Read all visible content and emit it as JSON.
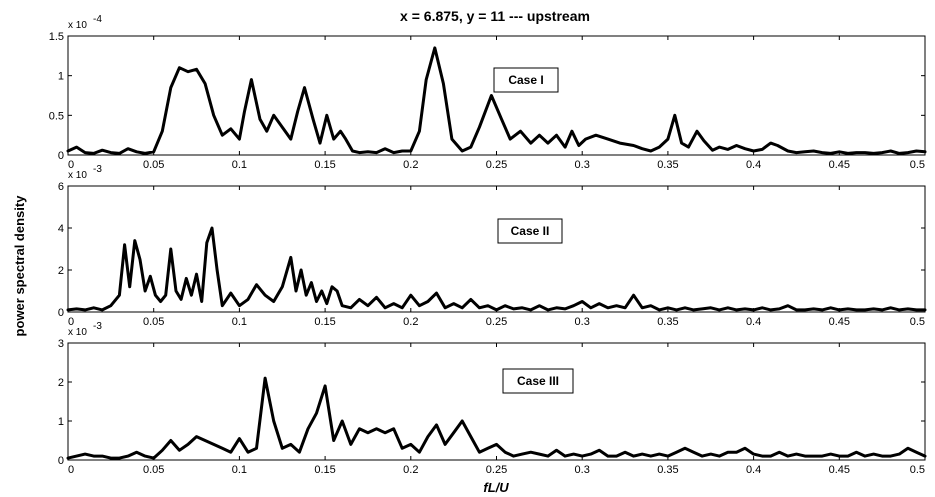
{
  "title": "x = 6.875, y = 11 --- upstream",
  "ylabel": "power spectral density",
  "xlabel": "fL/U",
  "chart_data": [
    {
      "type": "line",
      "annotation": "Case I",
      "exponent_label": "x 10",
      "exponent": "-4",
      "xlim": [
        0,
        0.5
      ],
      "ylim": [
        0,
        1.5
      ],
      "xticks": [
        "0",
        "0.05",
        "0.1",
        "0.15",
        "0.2",
        "0.25",
        "0.3",
        "0.35",
        "0.4",
        "0.45",
        "0.5"
      ],
      "yticks": [
        "0",
        "0.5",
        "1",
        "1.5"
      ],
      "x": [
        0,
        0.005,
        0.01,
        0.015,
        0.02,
        0.025,
        0.03,
        0.035,
        0.04,
        0.045,
        0.05,
        0.055,
        0.06,
        0.065,
        0.07,
        0.075,
        0.08,
        0.085,
        0.09,
        0.095,
        0.1,
        0.103,
        0.107,
        0.112,
        0.116,
        0.12,
        0.125,
        0.13,
        0.134,
        0.138,
        0.143,
        0.147,
        0.151,
        0.155,
        0.159,
        0.162,
        0.166,
        0.17,
        0.175,
        0.18,
        0.185,
        0.19,
        0.195,
        0.2,
        0.205,
        0.209,
        0.214,
        0.219,
        0.224,
        0.23,
        0.235,
        0.24,
        0.247,
        0.253,
        0.258,
        0.264,
        0.27,
        0.275,
        0.28,
        0.285,
        0.29,
        0.294,
        0.298,
        0.302,
        0.308,
        0.315,
        0.322,
        0.33,
        0.335,
        0.34,
        0.345,
        0.35,
        0.354,
        0.358,
        0.362,
        0.367,
        0.371,
        0.376,
        0.38,
        0.385,
        0.39,
        0.395,
        0.4,
        0.405,
        0.41,
        0.414,
        0.42,
        0.425,
        0.43,
        0.435,
        0.44,
        0.445,
        0.45,
        0.455,
        0.46,
        0.465,
        0.47,
        0.475,
        0.48,
        0.485,
        0.49,
        0.495,
        0.5
      ],
      "y": [
        0.05,
        0.1,
        0.03,
        0.02,
        0.06,
        0.03,
        0.02,
        0.08,
        0.04,
        0.02,
        0.04,
        0.3,
        0.85,
        1.1,
        1.05,
        1.08,
        0.9,
        0.5,
        0.25,
        0.33,
        0.2,
        0.55,
        0.95,
        0.45,
        0.3,
        0.5,
        0.35,
        0.2,
        0.55,
        0.85,
        0.45,
        0.15,
        0.5,
        0.2,
        0.3,
        0.2,
        0.05,
        0.03,
        0.04,
        0.03,
        0.08,
        0.03,
        0.05,
        0.05,
        0.3,
        0.95,
        1.35,
        0.9,
        0.2,
        0.05,
        0.1,
        0.35,
        0.75,
        0.45,
        0.2,
        0.3,
        0.15,
        0.25,
        0.15,
        0.25,
        0.1,
        0.3,
        0.12,
        0.2,
        0.25,
        0.2,
        0.15,
        0.12,
        0.08,
        0.05,
        0.1,
        0.2,
        0.5,
        0.15,
        0.1,
        0.3,
        0.18,
        0.06,
        0.1,
        0.07,
        0.12,
        0.08,
        0.05,
        0.07,
        0.15,
        0.12,
        0.05,
        0.03,
        0.04,
        0.05,
        0.03,
        0.02,
        0.04,
        0.02,
        0.03,
        0.03,
        0.02,
        0.03,
        0.05,
        0.02,
        0.03,
        0.05,
        0.04
      ]
    },
    {
      "type": "line",
      "annotation": "Case II",
      "exponent_label": "x 10",
      "exponent": "-3",
      "xlim": [
        0,
        0.5
      ],
      "ylim": [
        0,
        6
      ],
      "xticks": [
        "0",
        "0.05",
        "0.1",
        "0.15",
        "0.2",
        "0.25",
        "0.3",
        "0.35",
        "0.4",
        "0.45",
        "0.5"
      ],
      "yticks": [
        "0",
        "2",
        "4",
        "6"
      ],
      "x": [
        0,
        0.005,
        0.01,
        0.015,
        0.02,
        0.025,
        0.03,
        0.033,
        0.036,
        0.039,
        0.042,
        0.045,
        0.048,
        0.051,
        0.054,
        0.057,
        0.06,
        0.063,
        0.066,
        0.069,
        0.072,
        0.075,
        0.078,
        0.081,
        0.084,
        0.087,
        0.09,
        0.095,
        0.1,
        0.105,
        0.11,
        0.115,
        0.12,
        0.125,
        0.13,
        0.133,
        0.136,
        0.139,
        0.142,
        0.145,
        0.148,
        0.151,
        0.154,
        0.157,
        0.16,
        0.165,
        0.17,
        0.175,
        0.18,
        0.185,
        0.19,
        0.195,
        0.2,
        0.205,
        0.21,
        0.215,
        0.22,
        0.225,
        0.23,
        0.235,
        0.24,
        0.245,
        0.25,
        0.255,
        0.26,
        0.265,
        0.27,
        0.275,
        0.28,
        0.285,
        0.29,
        0.295,
        0.3,
        0.305,
        0.31,
        0.315,
        0.32,
        0.325,
        0.33,
        0.335,
        0.34,
        0.345,
        0.35,
        0.355,
        0.36,
        0.365,
        0.37,
        0.375,
        0.38,
        0.385,
        0.39,
        0.395,
        0.4,
        0.405,
        0.41,
        0.415,
        0.42,
        0.425,
        0.43,
        0.435,
        0.44,
        0.445,
        0.45,
        0.455,
        0.46,
        0.465,
        0.47,
        0.475,
        0.48,
        0.485,
        0.49,
        0.495,
        0.5
      ],
      "y": [
        0.1,
        0.15,
        0.1,
        0.2,
        0.1,
        0.3,
        0.8,
        3.2,
        1.2,
        3.4,
        2.5,
        1.0,
        1.7,
        0.8,
        0.5,
        0.8,
        3.0,
        1.0,
        0.6,
        1.6,
        0.8,
        1.8,
        0.5,
        3.3,
        4.0,
        2.0,
        0.3,
        0.9,
        0.3,
        0.6,
        1.3,
        0.8,
        0.5,
        1.2,
        2.6,
        1.0,
        2.0,
        0.8,
        1.4,
        0.5,
        1.0,
        0.4,
        1.2,
        1.0,
        0.3,
        0.2,
        0.6,
        0.3,
        0.7,
        0.2,
        0.4,
        0.2,
        0.8,
        0.3,
        0.5,
        0.9,
        0.2,
        0.4,
        0.2,
        0.6,
        0.2,
        0.3,
        0.1,
        0.3,
        0.15,
        0.2,
        0.1,
        0.3,
        0.1,
        0.2,
        0.15,
        0.3,
        0.5,
        0.2,
        0.4,
        0.2,
        0.3,
        0.2,
        0.8,
        0.2,
        0.3,
        0.1,
        0.2,
        0.1,
        0.2,
        0.1,
        0.15,
        0.2,
        0.1,
        0.2,
        0.1,
        0.15,
        0.1,
        0.2,
        0.1,
        0.15,
        0.3,
        0.1,
        0.1,
        0.15,
        0.1,
        0.2,
        0.1,
        0.15,
        0.1,
        0.1,
        0.15,
        0.1,
        0.2,
        0.1,
        0.15,
        0.1,
        0.1
      ]
    },
    {
      "type": "line",
      "annotation": "Case III",
      "exponent_label": "x 10",
      "exponent": "-3",
      "xlim": [
        0,
        0.5
      ],
      "ylim": [
        0,
        3
      ],
      "xticks": [
        "0",
        "0.05",
        "0.1",
        "0.15",
        "0.2",
        "0.25",
        "0.3",
        "0.35",
        "0.4",
        "0.45",
        "0.5"
      ],
      "yticks": [
        "0",
        "1",
        "2",
        "3"
      ],
      "x": [
        0,
        0.005,
        0.01,
        0.015,
        0.02,
        0.025,
        0.03,
        0.035,
        0.04,
        0.045,
        0.05,
        0.055,
        0.06,
        0.065,
        0.07,
        0.075,
        0.08,
        0.085,
        0.09,
        0.095,
        0.1,
        0.105,
        0.11,
        0.115,
        0.12,
        0.125,
        0.13,
        0.135,
        0.14,
        0.145,
        0.15,
        0.155,
        0.16,
        0.165,
        0.17,
        0.175,
        0.18,
        0.185,
        0.19,
        0.195,
        0.2,
        0.205,
        0.21,
        0.215,
        0.22,
        0.225,
        0.23,
        0.235,
        0.24,
        0.245,
        0.25,
        0.255,
        0.26,
        0.265,
        0.27,
        0.275,
        0.28,
        0.285,
        0.29,
        0.295,
        0.3,
        0.305,
        0.31,
        0.315,
        0.32,
        0.325,
        0.33,
        0.335,
        0.34,
        0.345,
        0.35,
        0.355,
        0.36,
        0.365,
        0.37,
        0.375,
        0.38,
        0.385,
        0.39,
        0.395,
        0.4,
        0.405,
        0.41,
        0.415,
        0.42,
        0.425,
        0.43,
        0.435,
        0.44,
        0.445,
        0.45,
        0.455,
        0.46,
        0.465,
        0.47,
        0.475,
        0.48,
        0.485,
        0.49,
        0.495,
        0.5
      ],
      "y": [
        0.05,
        0.1,
        0.15,
        0.1,
        0.1,
        0.05,
        0.05,
        0.1,
        0.2,
        0.1,
        0.05,
        0.25,
        0.5,
        0.25,
        0.4,
        0.6,
        0.5,
        0.4,
        0.3,
        0.2,
        0.55,
        0.2,
        0.3,
        2.1,
        1.0,
        0.3,
        0.4,
        0.2,
        0.8,
        1.2,
        1.9,
        0.5,
        1.0,
        0.4,
        0.8,
        0.7,
        0.8,
        0.7,
        0.8,
        0.3,
        0.4,
        0.2,
        0.6,
        0.9,
        0.4,
        0.7,
        1.0,
        0.6,
        0.2,
        0.3,
        0.4,
        0.2,
        0.1,
        0.15,
        0.2,
        0.15,
        0.1,
        0.25,
        0.1,
        0.15,
        0.1,
        0.15,
        0.25,
        0.1,
        0.1,
        0.2,
        0.1,
        0.15,
        0.1,
        0.15,
        0.1,
        0.2,
        0.3,
        0.2,
        0.1,
        0.15,
        0.1,
        0.2,
        0.2,
        0.3,
        0.15,
        0.1,
        0.1,
        0.2,
        0.1,
        0.15,
        0.1,
        0.1,
        0.1,
        0.15,
        0.1,
        0.1,
        0.2,
        0.1,
        0.15,
        0.1,
        0.1,
        0.15,
        0.3,
        0.2,
        0.1
      ]
    }
  ]
}
